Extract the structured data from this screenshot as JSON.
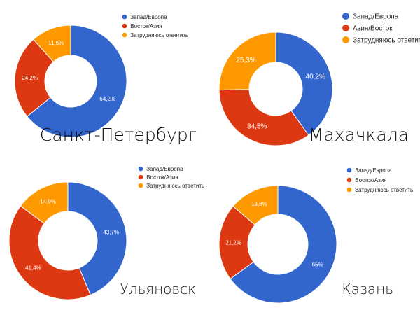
{
  "chart_data": [
    {
      "type": "pie",
      "title": "Санкт-Петербург",
      "categories": [
        "Запад/Европа",
        "Восток/Азия",
        "Затрудняюсь ответить"
      ],
      "values": [
        64.2,
        24.2,
        11.6
      ],
      "labels": [
        "64,2%",
        "24,2%",
        "11,6%"
      ],
      "colors": [
        "#3366cc",
        "#dc3912",
        "#ff9900"
      ],
      "legend": "top-right"
    },
    {
      "type": "pie",
      "title": "Махачкала",
      "categories": [
        "Запад/Европа",
        "Азия/Восток",
        "Затрудняюсь ответить"
      ],
      "values": [
        40.2,
        34.5,
        25.3
      ],
      "labels": [
        "40,2%",
        "34,5%",
        "25,3%"
      ],
      "colors": [
        "#3366cc",
        "#dc3912",
        "#ff9900"
      ],
      "legend": "top-right"
    },
    {
      "type": "pie",
      "title": "Ульяновск",
      "categories": [
        "Запад/Европа",
        "Восток/Азия",
        "Затрудняюсь ответить"
      ],
      "values": [
        43.7,
        41.4,
        14.9
      ],
      "labels": [
        "43,7%",
        "41,4%",
        "14,9%"
      ],
      "colors": [
        "#3366cc",
        "#dc3912",
        "#ff9900"
      ],
      "legend": "top-right"
    },
    {
      "type": "pie",
      "title": "Казань",
      "categories": [
        "Запад/Европа",
        "Восток/Азия",
        "Затрудняюсь ответить"
      ],
      "values": [
        65,
        21.2,
        13.8
      ],
      "labels": [
        "65%",
        "21,2%",
        "13,8%"
      ],
      "colors": [
        "#3366cc",
        "#dc3912",
        "#ff9900"
      ],
      "legend": "top-right"
    }
  ]
}
